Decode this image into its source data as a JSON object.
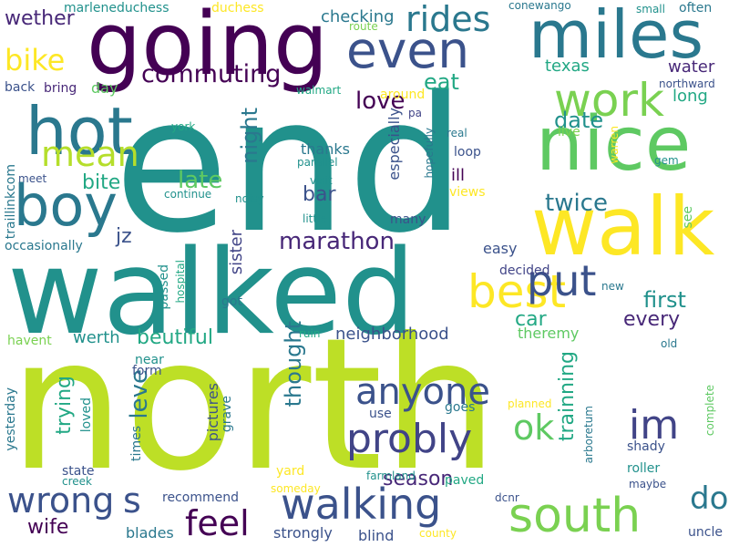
{
  "words": [
    {
      "text": "north",
      "color": "#bddf26"
    },
    {
      "text": "end",
      "color": "#21918c"
    },
    {
      "text": "walked",
      "color": "#21918c"
    },
    {
      "text": "going",
      "color": "#440154"
    },
    {
      "text": "miles",
      "color": "#2a788e"
    },
    {
      "text": "walk",
      "color": "#fde725"
    },
    {
      "text": "nice",
      "color": "#5ec962"
    },
    {
      "text": "even",
      "color": "#3b528b"
    },
    {
      "text": "hot",
      "color": "#2a788e"
    },
    {
      "text": "boy",
      "color": "#2a788e"
    },
    {
      "text": "work",
      "color": "#7ad151"
    },
    {
      "text": "best",
      "color": "#fde725"
    },
    {
      "text": "walking",
      "color": "#3b528b"
    },
    {
      "text": "south",
      "color": "#7ad151"
    },
    {
      "text": "put",
      "color": "#3b528b"
    },
    {
      "text": "probly",
      "color": "#414487"
    },
    {
      "text": "anyone",
      "color": "#3b528b"
    },
    {
      "text": "im",
      "color": "#414487"
    },
    {
      "text": "ok",
      "color": "#5ec962"
    },
    {
      "text": "feel",
      "color": "#440154"
    },
    {
      "text": "wrong",
      "color": "#3b528b"
    },
    {
      "text": "dog",
      "color": "#2a788e"
    },
    {
      "text": "s",
      "color": "#3b528b"
    },
    {
      "text": "mean",
      "color": "#b5de2b"
    },
    {
      "text": "rides",
      "color": "#2a788e"
    },
    {
      "text": "bike",
      "color": "#fde725"
    },
    {
      "text": "commuting",
      "color": "#440154"
    },
    {
      "text": "wether",
      "color": "#482878"
    },
    {
      "text": "love",
      "color": "#440154"
    },
    {
      "text": "eat",
      "color": "#22a884"
    },
    {
      "text": "marathon",
      "color": "#482878"
    },
    {
      "text": "late",
      "color": "#5ec962"
    },
    {
      "text": "night",
      "color": "#2a788e"
    },
    {
      "text": "bar",
      "color": "#3b528b"
    },
    {
      "text": "bite",
      "color": "#22a884"
    },
    {
      "text": "jz",
      "color": "#3b528b"
    },
    {
      "text": "twice",
      "color": "#2a788e"
    },
    {
      "text": "date",
      "color": "#21918c"
    },
    {
      "text": "first",
      "color": "#21918c"
    },
    {
      "text": "every",
      "color": "#482878"
    },
    {
      "text": "car",
      "color": "#22a884"
    },
    {
      "text": "beutiful",
      "color": "#22a884"
    },
    {
      "text": "leve",
      "color": "#2a788e"
    },
    {
      "text": "thought",
      "color": "#2a788e"
    },
    {
      "text": "season",
      "color": "#482878"
    },
    {
      "text": "trying",
      "color": "#22a884"
    },
    {
      "text": "trainning",
      "color": "#22a884"
    },
    {
      "text": "wife",
      "color": "#440154"
    },
    {
      "text": "neighborhood",
      "color": "#3b528b"
    },
    {
      "text": "werth",
      "color": "#21918c"
    },
    {
      "text": "texas",
      "color": "#22a884"
    },
    {
      "text": "water",
      "color": "#482878"
    },
    {
      "text": "long",
      "color": "#22a884"
    },
    {
      "text": "checking",
      "color": "#2a788e"
    },
    {
      "text": "marleneduchess",
      "color": "#21918c"
    },
    {
      "text": "duchess",
      "color": "#fde725"
    },
    {
      "text": "conewango",
      "color": "#2a788e"
    },
    {
      "text": "small",
      "color": "#21918c"
    },
    {
      "text": "often",
      "color": "#2a788e"
    },
    {
      "text": "route",
      "color": "#7ad151"
    },
    {
      "text": "back",
      "color": "#3b528b"
    },
    {
      "text": "bring",
      "color": "#482878"
    },
    {
      "text": "day",
      "color": "#5ec962"
    },
    {
      "text": "walmart",
      "color": "#22a884"
    },
    {
      "text": "around",
      "color": "#fde725"
    },
    {
      "text": "northward",
      "color": "#3b528b"
    },
    {
      "text": "especially",
      "color": "#3b528b"
    },
    {
      "text": "pa",
      "color": "#414487"
    },
    {
      "text": "real",
      "color": "#2a788e"
    },
    {
      "text": "live",
      "color": "#7ad151"
    },
    {
      "text": "york",
      "color": "#22a884"
    },
    {
      "text": "thanks",
      "color": "#2a788e"
    },
    {
      "text": "parallel",
      "color": "#21918c"
    },
    {
      "text": "hopefully",
      "color": "#2a788e"
    },
    {
      "text": "loop",
      "color": "#3b528b"
    },
    {
      "text": "warren",
      "color": "#fde725"
    },
    {
      "text": "gem",
      "color": "#21918c"
    },
    {
      "text": "traillinkcom",
      "color": "#2a788e"
    },
    {
      "text": "meet",
      "color": "#3b528b"
    },
    {
      "text": "visit",
      "color": "#21918c"
    },
    {
      "text": "continue",
      "color": "#21918c"
    },
    {
      "text": "noisy",
      "color": "#21918c"
    },
    {
      "text": "little",
      "color": "#21918c"
    },
    {
      "text": "ill",
      "color": "#440154"
    },
    {
      "text": "views",
      "color": "#fde725"
    },
    {
      "text": "many",
      "color": "#3b528b"
    },
    {
      "text": "see",
      "color": "#5ec962"
    },
    {
      "text": "occasionally",
      "color": "#2a788e"
    },
    {
      "text": "easy",
      "color": "#3b528b"
    },
    {
      "text": "sister",
      "color": "#414487"
    },
    {
      "text": "passed",
      "color": "#21918c"
    },
    {
      "text": "hospital",
      "color": "#22a884"
    },
    {
      "text": "got",
      "color": "#2a788e"
    },
    {
      "text": "decided",
      "color": "#414487"
    },
    {
      "text": "new",
      "color": "#2a788e"
    },
    {
      "text": "havent",
      "color": "#7ad151"
    },
    {
      "text": "ruin",
      "color": "#22a884"
    },
    {
      "text": "theremy",
      "color": "#5ec962"
    },
    {
      "text": "near",
      "color": "#21918c"
    },
    {
      "text": "old",
      "color": "#2a788e"
    },
    {
      "text": "form",
      "color": "#3b528b"
    },
    {
      "text": "pictures",
      "color": "#3b528b"
    },
    {
      "text": "grave",
      "color": "#2a788e"
    },
    {
      "text": "goes",
      "color": "#2a788e"
    },
    {
      "text": "use",
      "color": "#3b528b"
    },
    {
      "text": "planned",
      "color": "#fde725"
    },
    {
      "text": "arboretum",
      "color": "#2a788e"
    },
    {
      "text": "complete",
      "color": "#5ec962"
    },
    {
      "text": "yesterday",
      "color": "#2a788e"
    },
    {
      "text": "loved",
      "color": "#21918c"
    },
    {
      "text": "times",
      "color": "#2a788e"
    },
    {
      "text": "shady",
      "color": "#3b528b"
    },
    {
      "text": "state",
      "color": "#3b528b"
    },
    {
      "text": "creek",
      "color": "#21918c"
    },
    {
      "text": "yard",
      "color": "#fde725"
    },
    {
      "text": "farmland",
      "color": "#21918c"
    },
    {
      "text": "paved",
      "color": "#22a884"
    },
    {
      "text": "roller",
      "color": "#21918c"
    },
    {
      "text": "maybe",
      "color": "#3b528b"
    },
    {
      "text": "recommend",
      "color": "#3b528b"
    },
    {
      "text": "someday",
      "color": "#fde725"
    },
    {
      "text": "dcnr",
      "color": "#3b528b"
    },
    {
      "text": "blades",
      "color": "#2a788e"
    },
    {
      "text": "strongly",
      "color": "#3b528b"
    },
    {
      "text": "blind",
      "color": "#3b528b"
    },
    {
      "text": "county",
      "color": "#fde725"
    },
    {
      "text": "uncle",
      "color": "#3b528b"
    }
  ]
}
